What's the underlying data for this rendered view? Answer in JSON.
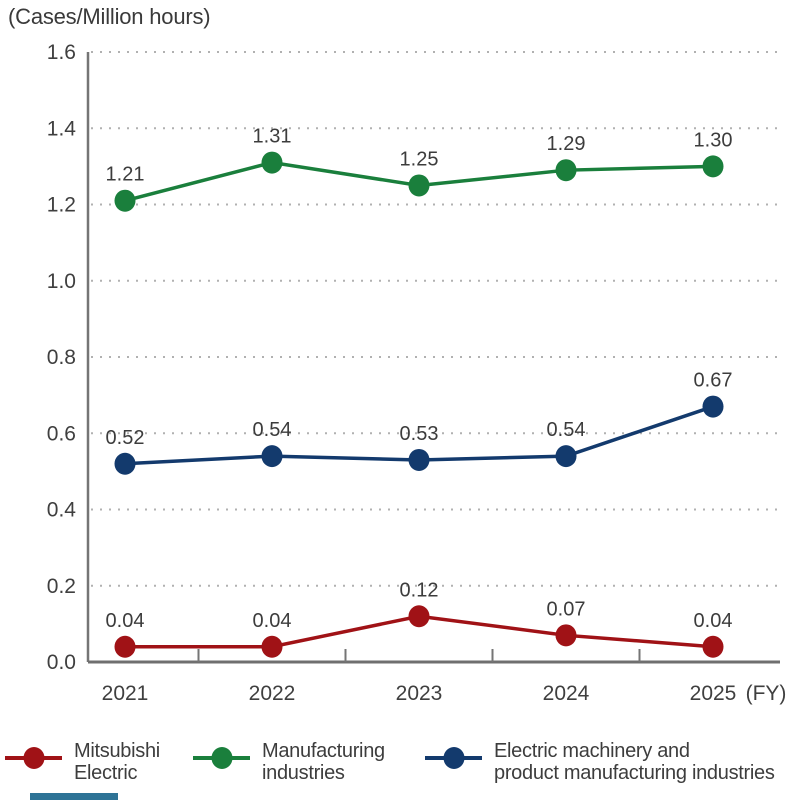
{
  "title": "(Cases/Million hours)",
  "chart_data": {
    "type": "line",
    "title": "(Cases/Million hours)",
    "xlabel": "(FY)",
    "ylabel": "(Cases/Million hours)",
    "categories": [
      "2021",
      "2022",
      "2023",
      "2024",
      "2025"
    ],
    "series": [
      {
        "name": "Manufacturing industries",
        "color": "#1A7F3C",
        "values": [
          1.21,
          1.31,
          1.25,
          1.29,
          1.3
        ],
        "labels": [
          "1.21",
          "1.31",
          "1.25",
          "1.29",
          "1.30"
        ]
      },
      {
        "name": "Electric machinery and product manufacturing industries",
        "color": "#133A6D",
        "values": [
          0.52,
          0.54,
          0.53,
          0.54,
          0.67
        ],
        "labels": [
          "0.52",
          "0.54",
          "0.53",
          "0.54",
          "0.67"
        ]
      },
      {
        "name": "Mitsubishi Electric",
        "color": "#A01216",
        "values": [
          0.04,
          0.04,
          0.12,
          0.07,
          0.04
        ],
        "labels": [
          "0.04",
          "0.04",
          "0.12",
          "0.07",
          "0.04"
        ]
      }
    ],
    "ylim": [
      0,
      1.6
    ],
    "yticks": [
      0.0,
      0.2,
      0.4,
      0.6,
      0.8,
      1.0,
      1.2,
      1.4,
      1.6
    ],
    "ytick_labels": [
      "0.0",
      "0.2",
      "0.4",
      "0.6",
      "0.8",
      "1.0",
      "1.2",
      "1.4",
      "1.6"
    ],
    "grid": "dotted horizontal gridlines",
    "legend_position": "bottom"
  },
  "axis": {
    "fy_label": "(FY)"
  },
  "legend": {
    "items": [
      {
        "label_line1": "Mitsubishi",
        "label_line2": "Electric",
        "color": "#A01216"
      },
      {
        "label_line1": "Manufacturing",
        "label_line2": "industries",
        "color": "#1A7F3C"
      },
      {
        "label_line1": "Electric machinery and",
        "label_line2": "product manufacturing industries",
        "color": "#133A6D"
      }
    ]
  },
  "misc": {
    "partial_element_color": "#2E7396"
  }
}
